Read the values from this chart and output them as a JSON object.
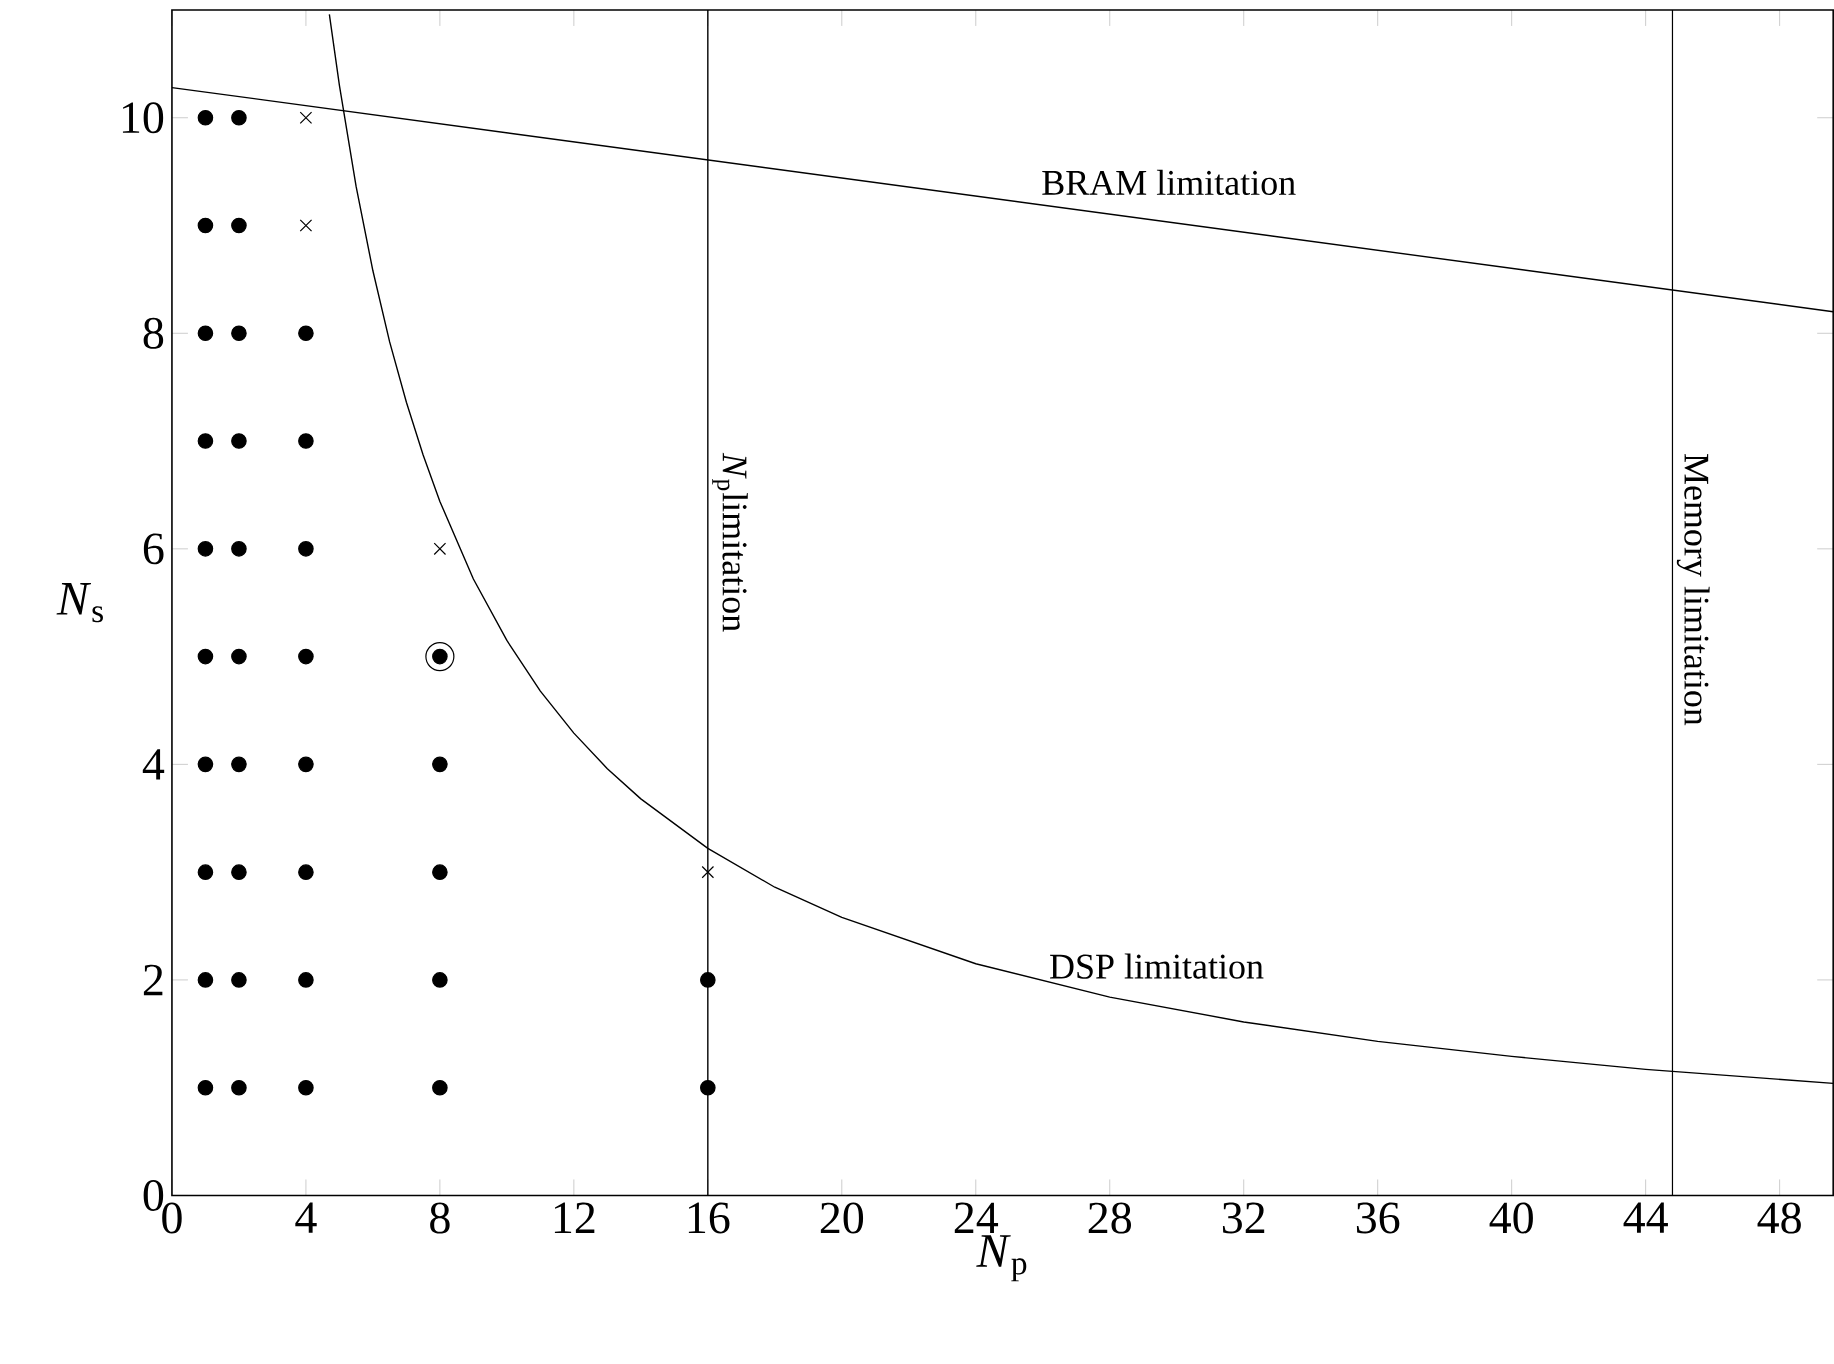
{
  "chart_data": {
    "type": "scatter",
    "xlabel": "*N*$_{p}$",
    "ylabel": "*N*$_{s}$",
    "xlim": [
      0,
      49.6
    ],
    "ylim": [
      0,
      11
    ],
    "xticks": [
      0,
      4,
      8,
      12,
      16,
      20,
      24,
      28,
      32,
      36,
      40,
      44,
      48
    ],
    "yticks": [
      0,
      2,
      4,
      6,
      8,
      10
    ],
    "grid": false,
    "series": [
      {
        "marker": "circle",
        "color": "#000000",
        "x": [
          1,
          1,
          1,
          1,
          1,
          1,
          1,
          1,
          1,
          1,
          2,
          2,
          2,
          2,
          2,
          2,
          2,
          2,
          2,
          2,
          4,
          4,
          4,
          4,
          4,
          4,
          4,
          4,
          8,
          8,
          8,
          8,
          8,
          16,
          16
        ],
        "values": [
          1,
          2,
          3,
          4,
          5,
          6,
          7,
          8,
          9,
          10,
          1,
          2,
          3,
          4,
          5,
          6,
          7,
          8,
          9,
          10,
          1,
          2,
          3,
          4,
          5,
          6,
          7,
          8,
          1,
          2,
          3,
          4,
          5,
          1,
          2
        ]
      },
      {
        "type": "scatter",
        "marker": "cross",
        "color": "#000000",
        "x": [
          4,
          4,
          8,
          16
        ],
        "values": [
          10,
          9,
          6,
          3
        ]
      },
      {
        "type": "bubble",
        "color": "#000000",
        "x": [
          8
        ],
        "values": [
          5
        ],
        "sizes": [
          1
        ]
      },
      {
        "type": "line",
        "marker": "none",
        "name": "BRAM limitation",
        "color": "#000000",
        "x": [
          0,
          49.6
        ],
        "values": [
          10.28,
          8.2
        ]
      },
      {
        "type": "line",
        "marker": "none",
        "name": "DSP limitation",
        "color": "#000000",
        "x": [
          4.7,
          5,
          5.5,
          6,
          6.5,
          7,
          7.5,
          8,
          9,
          10,
          11,
          12,
          13,
          14,
          16,
          18,
          20,
          24,
          28,
          32,
          36,
          40,
          44,
          49.6
        ],
        "values": [
          10.96,
          10.3,
          9.36,
          8.58,
          7.92,
          7.36,
          6.87,
          6.44,
          5.72,
          5.15,
          4.68,
          4.29,
          3.96,
          3.68,
          3.22,
          2.86,
          2.58,
          2.15,
          1.84,
          1.61,
          1.43,
          1.29,
          1.17,
          1.04
        ]
      }
    ],
    "ref_lines": [
      {
        "axis": "x",
        "value": 16,
        "label": "*N*$_{p}$limitation"
      },
      {
        "axis": "x",
        "value": 44.8,
        "label": "Memory limitation"
      }
    ]
  }
}
